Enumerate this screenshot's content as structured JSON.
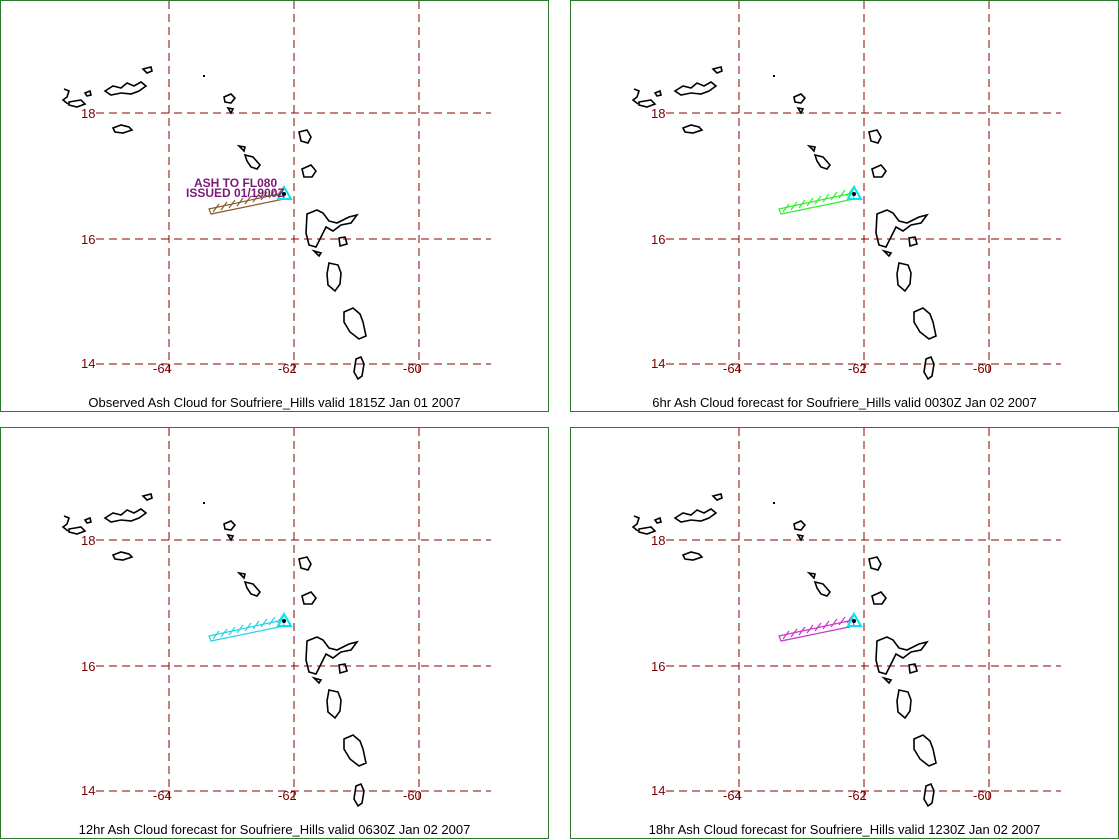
{
  "map": {
    "lat_labels": [
      "18",
      "16",
      "14"
    ],
    "lon_labels": [
      "-64",
      "-62",
      "-60"
    ],
    "grid_color": "#8b0000",
    "coast_color": "#000000",
    "volcano_color": "#00e5ee"
  },
  "panels": [
    {
      "caption": "Observed Ash Cloud for Soufriere_Hills valid 1815Z Jan 01 2007",
      "ash_color": "#8b5a2b",
      "annotation_line1": "ASH TO FL080",
      "annotation_line2": "ISSUED 01/1900Z"
    },
    {
      "caption": "6hr Ash Cloud forecast for Soufriere_Hills valid 0030Z Jan 02 2007",
      "ash_color": "#33ee33"
    },
    {
      "caption": "12hr Ash Cloud forecast for Soufriere_Hills valid 0630Z Jan 02 2007",
      "ash_color": "#22d3e6"
    },
    {
      "caption": "18hr Ash Cloud forecast for Soufriere_Hills valid 1230Z Jan 02 2007",
      "ash_color": "#cc33cc"
    }
  ]
}
